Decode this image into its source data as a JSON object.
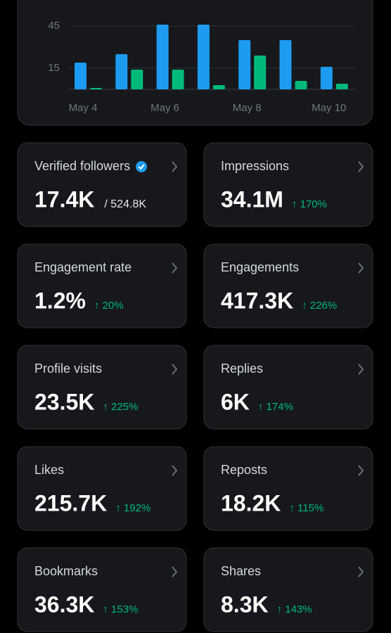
{
  "chart_data": {
    "type": "bar",
    "categories": [
      "May 4",
      null,
      "May 6",
      null,
      "May 8",
      null,
      "May 10"
    ],
    "series": [
      {
        "color": "#1d9bf0",
        "values": [
          19,
          25,
          46,
          46,
          35,
          35,
          16
        ]
      },
      {
        "color": "#00ba7c",
        "values": [
          1,
          14,
          14,
          3,
          24,
          6,
          4
        ]
      }
    ],
    "ylim": [
      0,
      50
    ],
    "yticks": [
      15,
      45
    ],
    "grid": true
  },
  "cards": [
    {
      "title": "Verified followers",
      "value": "17.4K",
      "total": "/ 524.8K"
    },
    {
      "title": "Impressions",
      "value": "34.1M",
      "change": "↑ 170%"
    },
    {
      "title": "Engagement rate",
      "value": "1.2%",
      "change": "↑ 20%"
    },
    {
      "title": "Engagements",
      "value": "417.3K",
      "change": "↑ 226%"
    },
    {
      "title": "Profile visits",
      "value": "23.5K",
      "change": "↑ 225%"
    },
    {
      "title": "Replies",
      "value": "6K",
      "change": "↑ 174%"
    },
    {
      "title": "Likes",
      "value": "215.7K",
      "change": "↑ 192%"
    },
    {
      "title": "Reposts",
      "value": "18.2K",
      "change": "↑ 115%"
    },
    {
      "title": "Bookmarks",
      "value": "36.3K",
      "change": "↑ 153%"
    },
    {
      "title": "Shares",
      "value": "8.3K",
      "change": "↑ 143%"
    }
  ]
}
